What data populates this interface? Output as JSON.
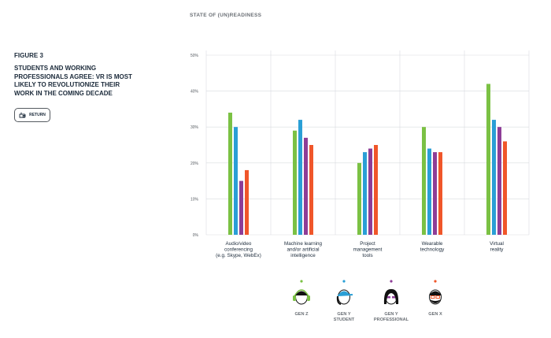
{
  "header": {
    "title": "STATE OF (UN)READINESS"
  },
  "figure": {
    "label": "FIGURE 3",
    "heading": "STUDENTS AND WORKING PROFESSIONALS AGREE: VR IS MOST LIKELY TO REVOLUTIONIZE THEIR WORK IN THE COMING DECADE",
    "return_label": "RETURN"
  },
  "colors": {
    "gen_z": "#7bc144",
    "gen_y_student": "#2a9fd6",
    "gen_y_professional": "#8e3d97",
    "gen_x": "#f0562a",
    "grid": "#d9dcdf",
    "axis_text": "#555a60"
  },
  "chart_data": {
    "type": "bar",
    "categories": [
      [
        "Audio/video",
        "conferencing",
        "(e.g. Skype, WebEx)"
      ],
      [
        "Machine learning",
        "and/or artificial",
        "intelligence"
      ],
      [
        "Project",
        "management",
        "tools"
      ],
      [
        "Wearable",
        "technology"
      ],
      [
        "Virtual",
        "reality"
      ]
    ],
    "ylim": [
      0,
      50
    ],
    "yticks": [
      "0%",
      "10%",
      "20%",
      "30%",
      "40%",
      "50%"
    ],
    "series": [
      {
        "name": "GEN Z",
        "color": "#7bc144",
        "values": [
          34,
          29,
          20,
          30,
          42
        ]
      },
      {
        "name": "GEN Y STUDENT",
        "color": "#2a9fd6",
        "values": [
          30,
          32,
          23,
          24,
          32
        ]
      },
      {
        "name": "GEN Y PROFESSIONAL",
        "color": "#8e3d97",
        "values": [
          15,
          27,
          24,
          23,
          30
        ]
      },
      {
        "name": "GEN X",
        "color": "#f0562a",
        "values": [
          18,
          25,
          25,
          23,
          26
        ]
      }
    ],
    "legend": [
      {
        "label": [
          "GEN Z"
        ],
        "icon": "headphones-face-icon"
      },
      {
        "label": [
          "GEN Y",
          "STUDENT"
        ],
        "icon": "cap-face-icon"
      },
      {
        "label": [
          "GEN Y",
          "PROFESSIONAL"
        ],
        "icon": "long-hair-face-icon"
      },
      {
        "label": [
          "GEN X"
        ],
        "icon": "glasses-beard-face-icon"
      }
    ],
    "grid": true,
    "legend_position": "bottom"
  }
}
